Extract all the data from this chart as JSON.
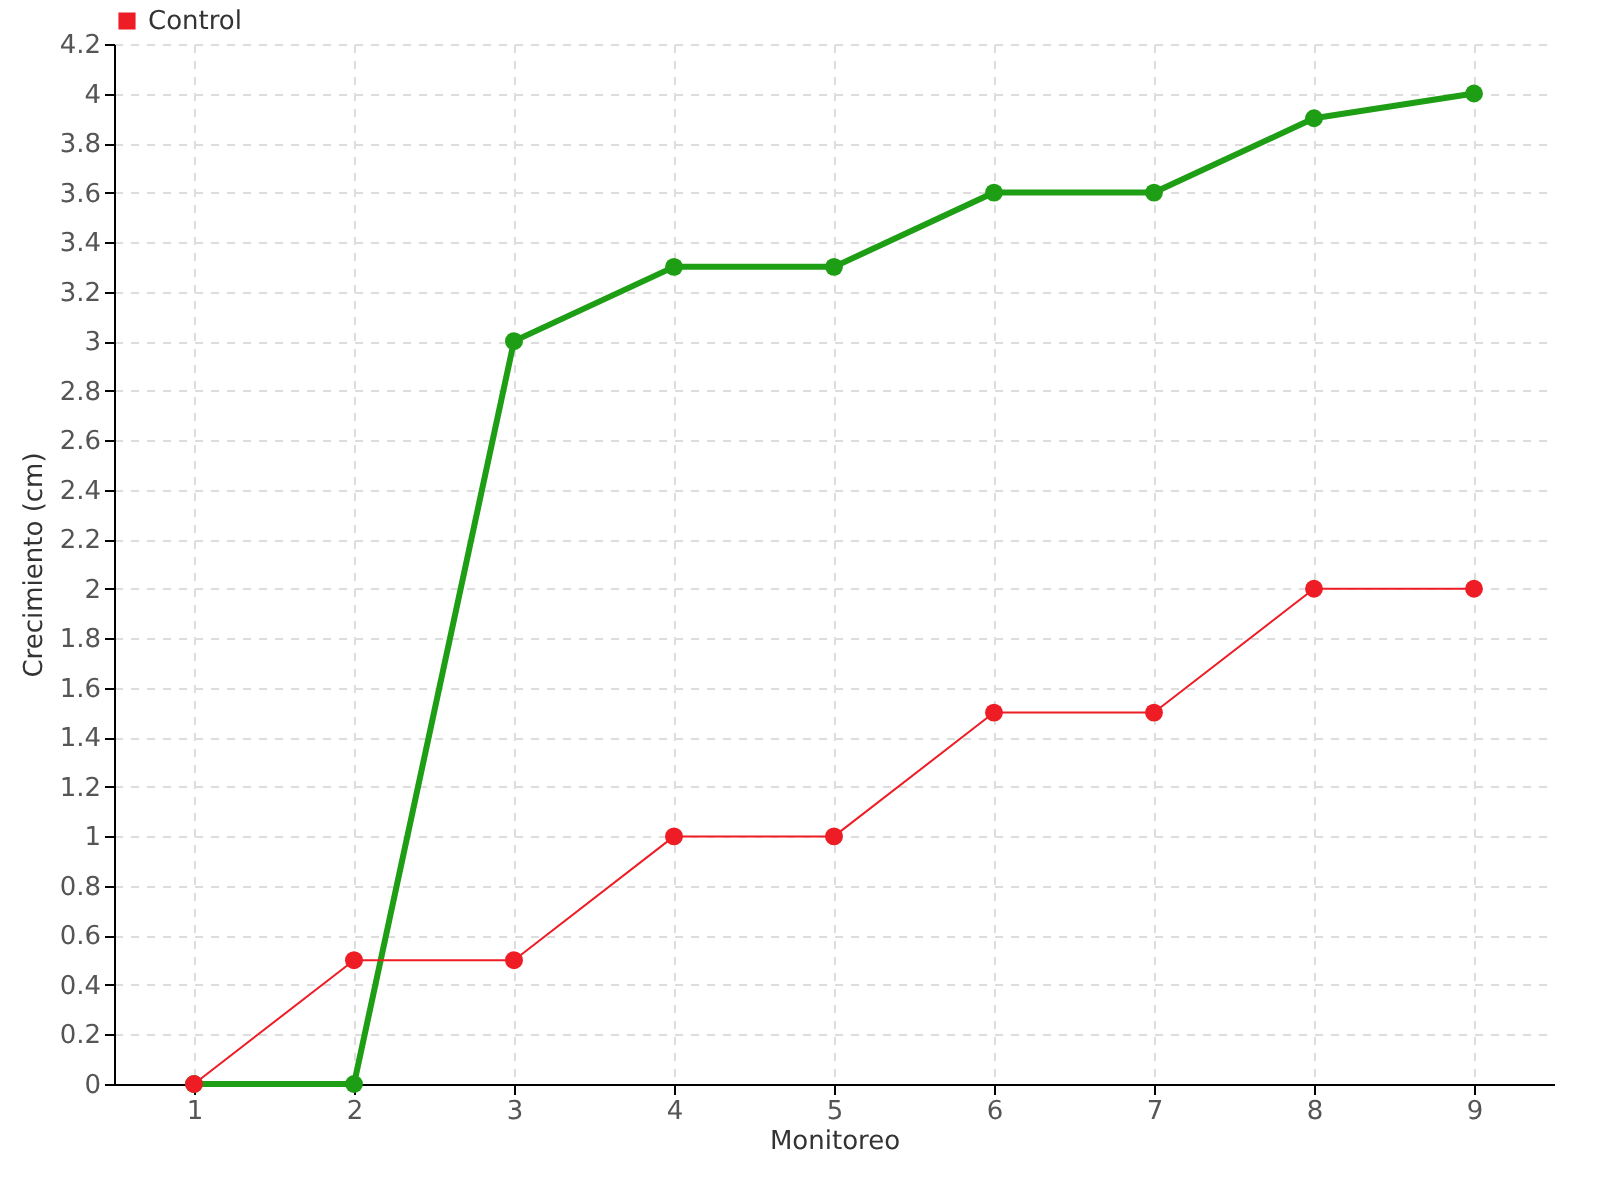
{
  "chart_data": {
    "type": "line",
    "xlabel": "Monitoreo",
    "ylabel": "Crecimiento (cm)",
    "categories": [
      "1",
      "2",
      "3",
      "4",
      "5",
      "6",
      "7",
      "8",
      "9"
    ],
    "series": [
      {
        "color": "#1e9e14",
        "values": [
          0,
          0,
          3,
          3.3,
          3.3,
          3.6,
          3.6,
          3.9,
          4
        ]
      },
      {
        "name": "Control",
        "color": "#ee1c25",
        "values": [
          0,
          0.5,
          0.5,
          1,
          1,
          1.5,
          1.5,
          2,
          2
        ]
      }
    ],
    "ylim": [
      0,
      4.2
    ],
    "yticks": [
      0,
      0.2,
      0.4,
      0.6,
      0.8,
      1,
      1.2,
      1.4,
      1.6,
      1.8,
      2,
      2.2,
      2.4,
      2.6,
      2.8,
      3,
      3.2,
      3.4,
      3.6,
      3.8,
      4,
      4.2
    ],
    "grid": true,
    "legend": "top left",
    "marker": "circle",
    "line_style": "solid"
  }
}
